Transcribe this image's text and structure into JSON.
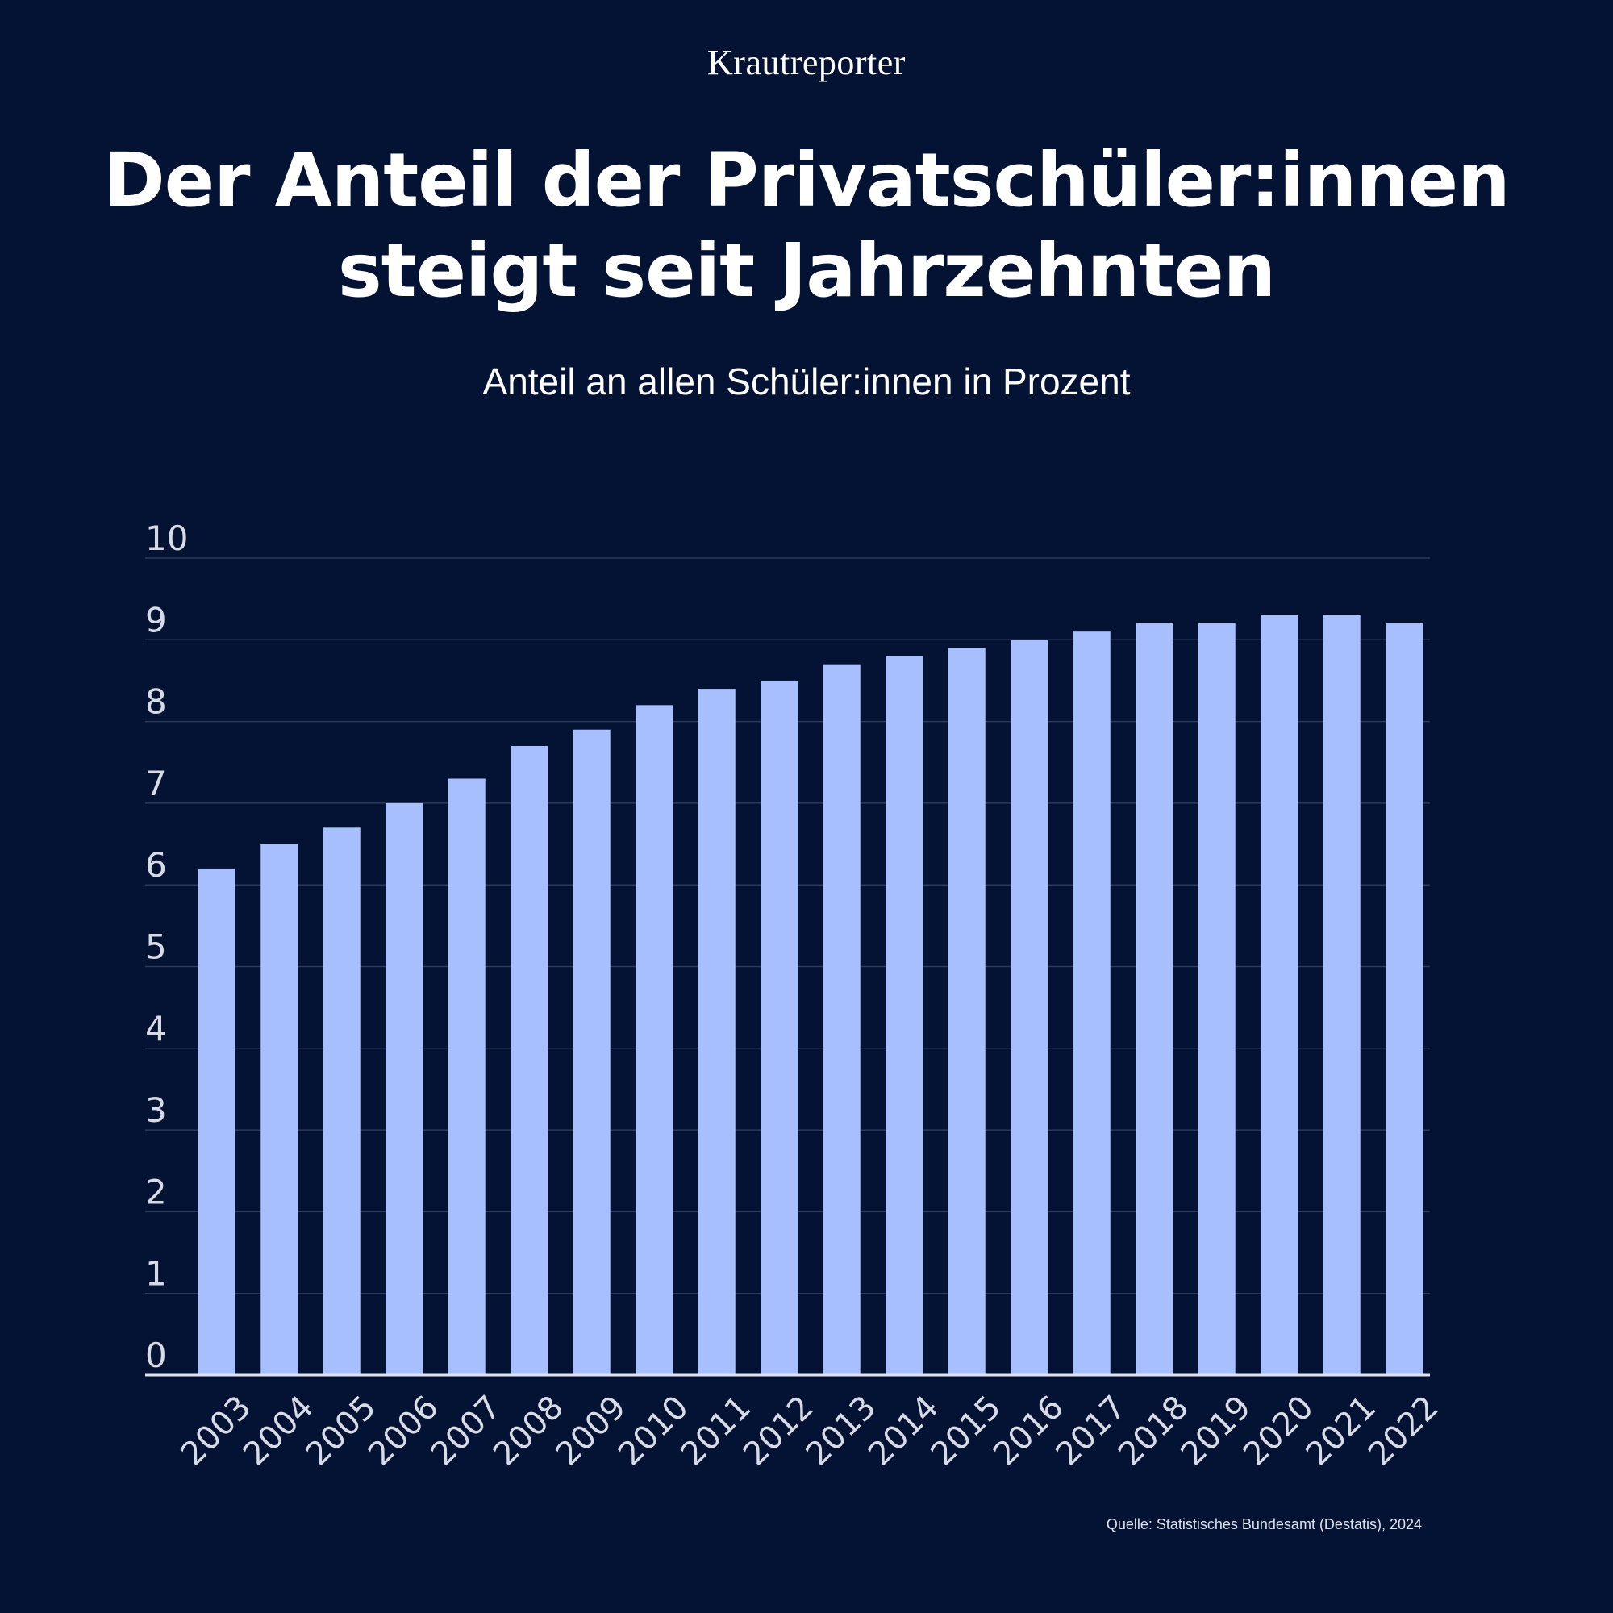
{
  "brand": "Krautreporter",
  "title_line1": "Der Anteil der Privatschüler:innen",
  "title_line2": "steigt seit Jahrzehnten",
  "subtitle": "Anteil an allen Schüler:innen in Prozent",
  "source": "Quelle:  Statistisches Bundesamt (Destatis), 2024",
  "colors": {
    "background": "#041233",
    "bar": "#a8bfff",
    "grid": "#2b3a5c",
    "axis": "#dfe3ee",
    "tick_text": "#d7dbe6"
  },
  "chart_data": {
    "type": "bar",
    "title": "Der Anteil der Privatschüler:innen steigt seit Jahrzehnten",
    "subtitle": "Anteil an allen Schüler:innen in Prozent",
    "xlabel": "",
    "ylabel": "",
    "categories": [
      "2003",
      "2004",
      "2005",
      "2006",
      "2007",
      "2008",
      "2009",
      "2010",
      "2011",
      "2012",
      "2013",
      "2014",
      "2015",
      "2016",
      "2017",
      "2018",
      "2019",
      "2020",
      "2021",
      "2022"
    ],
    "values": [
      6.2,
      6.5,
      6.7,
      7.0,
      7.3,
      7.7,
      7.9,
      8.2,
      8.4,
      8.5,
      8.7,
      8.8,
      8.9,
      9.0,
      9.1,
      9.2,
      9.2,
      9.3,
      9.3,
      9.2
    ],
    "ylim": [
      0,
      10
    ],
    "yticks": [
      "0",
      "1",
      "2",
      "3",
      "4",
      "5",
      "6",
      "7",
      "8",
      "9",
      "10"
    ],
    "grid": true,
    "legend": "none"
  }
}
